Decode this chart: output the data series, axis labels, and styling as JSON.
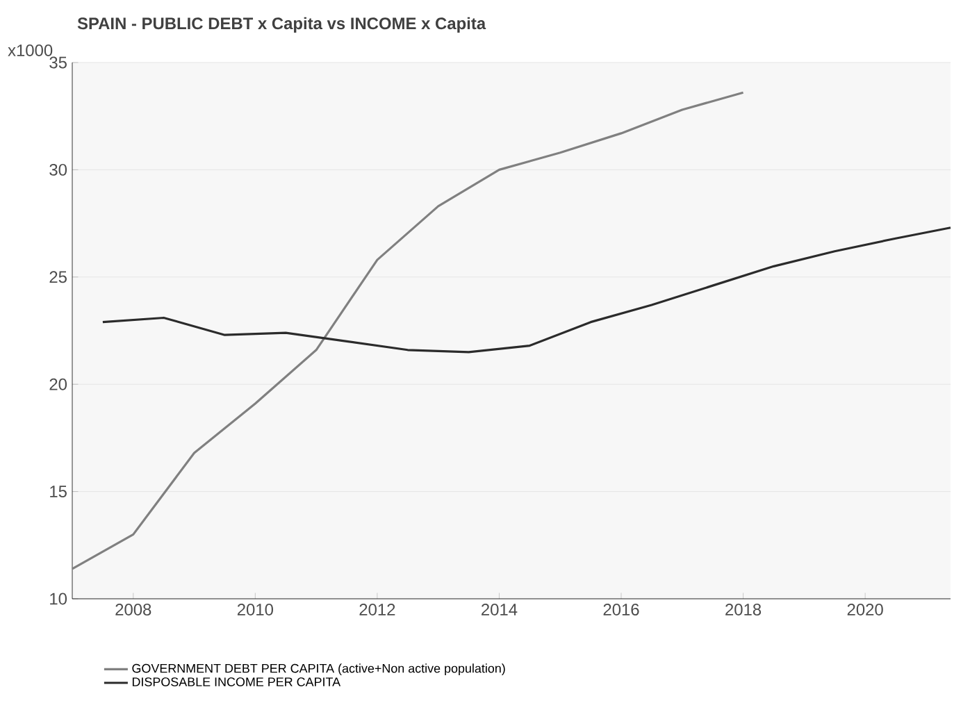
{
  "chart_data": {
    "type": "line",
    "title": "SPAIN - PUBLIC DEBT x Capita vs INCOME x Capita",
    "ylabel": "x1000",
    "xlim": [
      2007.0,
      2021.4
    ],
    "xticks": [
      2008,
      2010,
      2012,
      2014,
      2016,
      2018,
      2020
    ],
    "ylim": [
      10,
      35
    ],
    "yticks": [
      10,
      15,
      20,
      25,
      30,
      35
    ],
    "grid": "y",
    "legend": "bottom",
    "series": [
      {
        "name": "GOVERNMENT DEBT PER CAPITA (active+Non active population)",
        "color": "#808080",
        "x": [
          2007.0,
          2008,
          2009,
          2010,
          2011,
          2012,
          2013,
          2014,
          2015,
          2016,
          2017,
          2018
        ],
        "values": [
          11.4,
          13.0,
          16.8,
          19.1,
          21.6,
          25.8,
          28.3,
          30.0,
          30.8,
          31.7,
          32.8,
          33.6
        ]
      },
      {
        "name": "DISPOSABLE INCOME PER CAPITA",
        "color": "#2b2b2b",
        "x": [
          2007.5,
          2008.5,
          2009.5,
          2010.5,
          2011.5,
          2012.5,
          2013.5,
          2014.5,
          2015.5,
          2016.5,
          2017.5,
          2018.5,
          2019.5,
          2020.5,
          2021.4
        ],
        "values": [
          22.9,
          23.1,
          22.3,
          22.4,
          22.0,
          21.6,
          21.5,
          21.8,
          22.9,
          23.7,
          24.6,
          25.5,
          26.2,
          26.8,
          27.3
        ]
      }
    ]
  }
}
